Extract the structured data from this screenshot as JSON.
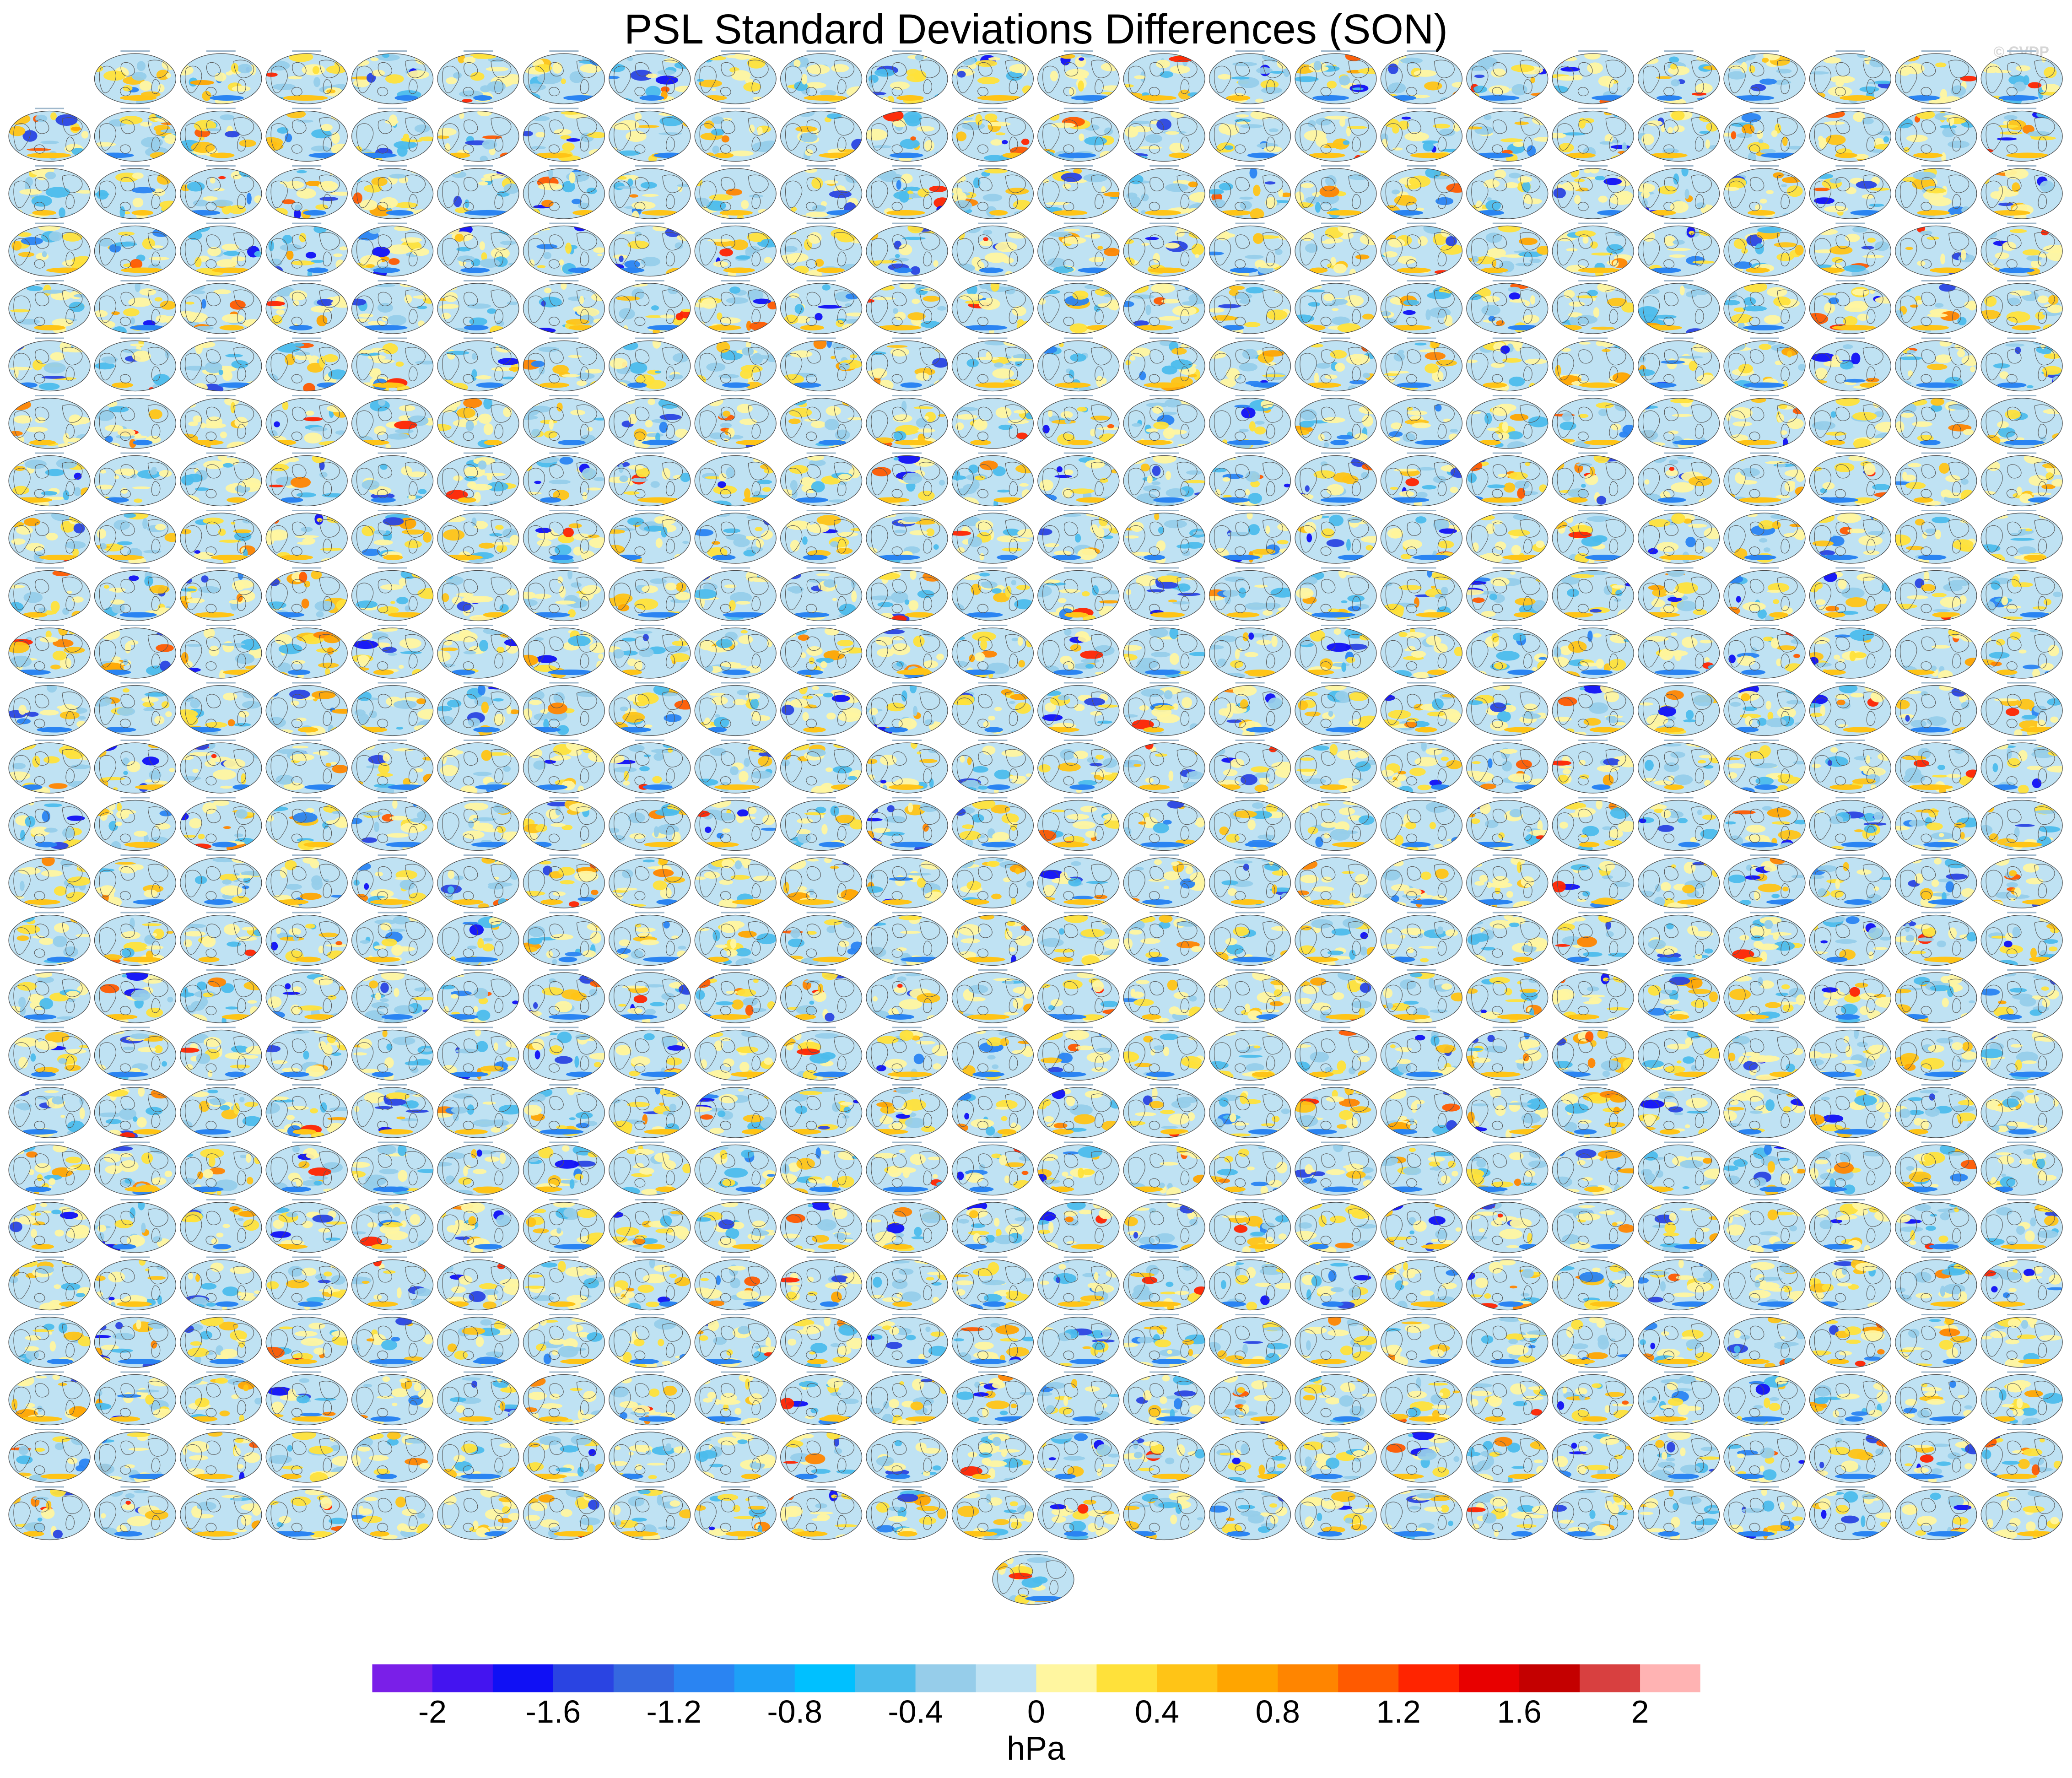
{
  "chart_data": {
    "type": "heatmap",
    "title": "PSL Standard Deviations Differences (SON)",
    "credit": "© CVDP",
    "panel_grid": {
      "rows": 26,
      "columns": 24,
      "first_row_columns": 23,
      "extra_bottom_panels": 1
    },
    "panel_content": "global map of PSL standard deviation difference",
    "colorbar": {
      "unit_label": "hPa",
      "tick_labels": [
        "-2",
        "-1.6",
        "-1.2",
        "-0.8",
        "-0.4",
        "0",
        "0.4",
        "0.8",
        "1.2",
        "1.6",
        "2"
      ],
      "levels": [
        -2.2,
        -2,
        -1.8,
        -1.6,
        -1.4,
        -1.2,
        -1,
        -0.8,
        -0.6,
        -0.4,
        -0.2,
        0,
        0.2,
        0.4,
        0.6,
        0.8,
        1,
        1.2,
        1.4,
        1.6,
        1.8,
        2,
        2.2
      ],
      "colors": [
        "#7a1fe8",
        "#4414f0",
        "#1010f5",
        "#2a44e2",
        "#3568e0",
        "#2a84f2",
        "#1ea0f7",
        "#00c0ff",
        "#4cbcec",
        "#96cdea",
        "#bfe2f3",
        "#fff6a0",
        "#ffe13a",
        "#ffc416",
        "#ffa500",
        "#ff8500",
        "#ff5a00",
        "#ff2400",
        "#e80000",
        "#c40000",
        "#d84040",
        "#ffb3b3"
      ]
    }
  }
}
